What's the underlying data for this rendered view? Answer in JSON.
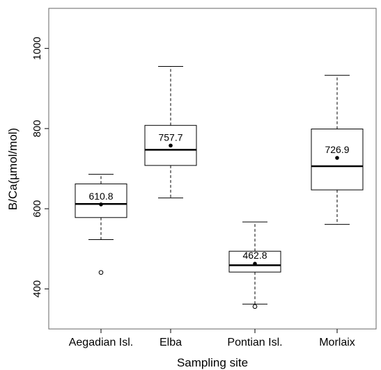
{
  "chart_data": {
    "type": "box",
    "xlabel": "Sampling site",
    "ylabel": "B/Ca(µmol/mol)",
    "ylim": [
      300,
      1100
    ],
    "yticks": [
      400,
      600,
      800,
      1000
    ],
    "grid": false,
    "categories": [
      "Aegadian Isl.",
      "Elba",
      "Pontian Isl.",
      "Morlaix"
    ],
    "boxes": [
      {
        "category": "Aegadian Isl.",
        "whisker_low": 523,
        "q1": 578,
        "median": 612,
        "q3": 662,
        "whisker_high": 686,
        "mean": 610.8,
        "mean_label": "610.8",
        "outliers": [
          441
        ]
      },
      {
        "category": "Elba",
        "whisker_low": 627,
        "q1": 708,
        "median": 747,
        "q3": 808,
        "whisker_high": 955,
        "mean": 757.7,
        "mean_label": "757.7",
        "outliers": []
      },
      {
        "category": "Pontian Isl.",
        "whisker_low": 362,
        "q1": 442,
        "median": 459,
        "q3": 494,
        "whisker_high": 567,
        "mean": 462.8,
        "mean_label": "462.8",
        "outliers": [
          356
        ]
      },
      {
        "category": "Morlaix",
        "whisker_low": 561,
        "q1": 647,
        "median": 706,
        "q3": 799,
        "whisker_high": 933,
        "mean": 726.9,
        "mean_label": "726.9",
        "outliers": []
      }
    ]
  }
}
